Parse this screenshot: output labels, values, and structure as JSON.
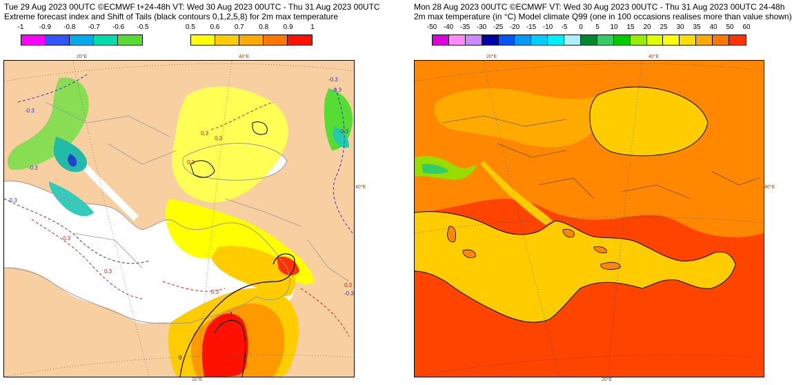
{
  "left": {
    "header_line1": "Tue 29 Aug 2023 00UTC ©ECMWF t+24-48h  VT: Wed 30 Aug 2023 00UTC - Thu 31 Aug 2023 00UTC",
    "header_line2": "Extreme forecast index and Shift of Tails (black contours 0,1,2,5,8) for 2m max temperature",
    "colorbar_neg": {
      "labels": [
        "-1",
        "-0.9",
        "-0.8",
        "-0.7",
        "-0.6",
        "-0.5"
      ],
      "colors": [
        "#ff00ff",
        "#3355ff",
        "#00aaee",
        "#00ddaa",
        "#55dd33"
      ]
    },
    "colorbar_pos": {
      "labels": [
        "0.5",
        "0.6",
        "0.7",
        "0.8",
        "0.9",
        "1"
      ],
      "colors": [
        "#ffff00",
        "#ffcc00",
        "#ffaa00",
        "#ff7700",
        "#ff1100"
      ]
    },
    "lon_labels": {
      "top1": "20°E",
      "top2": "40°E",
      "right": "40°E",
      "bottom": "20°E"
    },
    "contour_labels": [
      "-0.3",
      "-0.3",
      "-0.3",
      "-0.3",
      "-0.3",
      "-0.3",
      "-0.3",
      "0.3",
      "0.3",
      "0.3",
      "0.3",
      "0.3",
      "0.3",
      "0.3",
      "1",
      "0"
    ],
    "colors": {
      "land": "#f7cfa0",
      "sea": "#ffffff",
      "coast": "#999999",
      "border": "#999999"
    }
  },
  "right": {
    "header_line1": "Mon 28 Aug 2023 00UTC ©ECMWF VT: Wed 30 Aug 2023 00UTC - Thu 31 Aug 2023 00UTC  24-48h",
    "header_line2": "2m max temperature (in °C)  Model climate Q99 (one in 100 occasions realises more than value shown)",
    "colorbar": {
      "labels": [
        "-50",
        "-40",
        "-35",
        "-30",
        "-25",
        "-20",
        "-15",
        "-10",
        "-5",
        "0",
        "5",
        "10",
        "15",
        "20",
        "25",
        "30",
        "35",
        "40",
        "50",
        "60"
      ],
      "colors": [
        "#dd00dd",
        "#ff88ff",
        "#cc88ff",
        "#0000aa",
        "#0055ff",
        "#0099ff",
        "#00ccff",
        "#00eeff",
        "#aaeeff",
        "#008833",
        "#33cc66",
        "#00cc00",
        "#99ee00",
        "#ddff00",
        "#ffff00",
        "#ffdd00",
        "#ffaa00",
        "#ff7700",
        "#ff3300"
      ]
    },
    "lon_labels": {
      "top1": "20°E",
      "top2": "40°E",
      "right": "40°E",
      "bottom": "20°E"
    },
    "colors": {
      "sea": "#ffcc00",
      "land_hot": "#ff4400",
      "land_warm": "#ff8800",
      "coast": "#000000"
    }
  }
}
